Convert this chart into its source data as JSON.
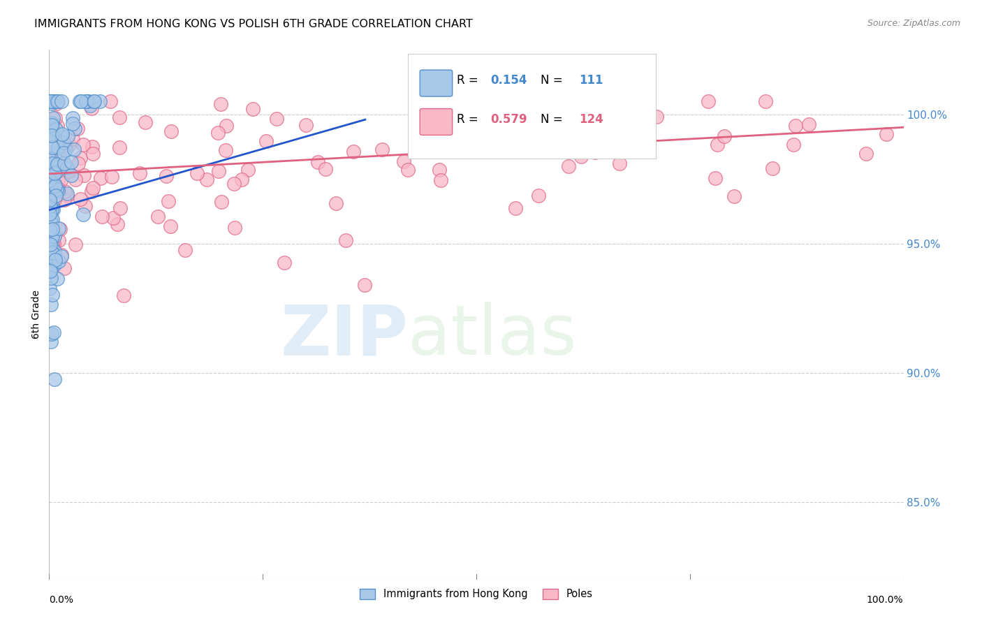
{
  "title": "IMMIGRANTS FROM HONG KONG VS POLISH 6TH GRADE CORRELATION CHART",
  "source": "Source: ZipAtlas.com",
  "ylabel": "6th Grade",
  "ytick_labels": [
    "100.0%",
    "95.0%",
    "90.0%",
    "85.0%"
  ],
  "ytick_values": [
    1.0,
    0.95,
    0.9,
    0.85
  ],
  "xlim": [
    0.0,
    1.0
  ],
  "ylim": [
    0.82,
    1.025
  ],
  "hk_R": 0.154,
  "hk_N": 111,
  "poles_R": 0.579,
  "poles_N": 124,
  "hk_color": "#a8c8e8",
  "hk_edge_color": "#5590cc",
  "poles_color": "#f8b8c8",
  "poles_edge_color": "#e06888",
  "hk_trend_color": "#2255cc",
  "poles_trend_color": "#e06080",
  "legend_label_hk": "Immigrants from Hong Kong",
  "legend_label_poles": "Poles",
  "hk_trend_x0": 0.0,
  "hk_trend_y0": 0.963,
  "hk_trend_x1": 0.37,
  "hk_trend_y1": 0.998,
  "poles_trend_x0": 0.0,
  "poles_trend_y0": 0.977,
  "poles_trend_x1": 1.0,
  "poles_trend_y1": 0.995
}
